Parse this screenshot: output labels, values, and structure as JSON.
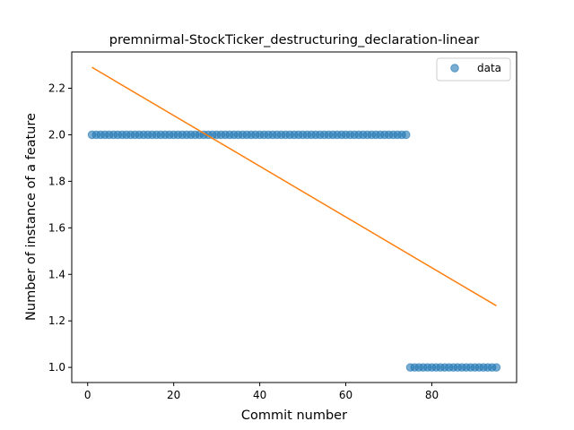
{
  "chart_data": {
    "type": "scatter",
    "title": "premnirmal-StockTicker_destructuring_declaration-linear",
    "xlabel": "Commit number",
    "ylabel": "Number of instance of a feature",
    "xlim": [
      -3.7,
      99.7
    ],
    "ylim": [
      0.935,
      2.356
    ],
    "xticks": [
      0,
      20,
      40,
      60,
      80
    ],
    "yticks": [
      1.0,
      1.2,
      1.4,
      1.6,
      1.8,
      2.0,
      2.2
    ],
    "xtick_labels": [
      "0",
      "20",
      "40",
      "60",
      "80"
    ],
    "ytick_labels": [
      "1.0",
      "1.2",
      "1.4",
      "1.6",
      "1.8",
      "2.0",
      "2.2"
    ],
    "legend": {
      "placement": "top-right",
      "entries": [
        "data"
      ]
    },
    "grid": false,
    "colors": {
      "data": "#1f77b4",
      "fit": "#ff7f0e"
    },
    "series": [
      {
        "name": "data",
        "kind": "scatter",
        "segments": [
          {
            "x_start": 1,
            "x_end": 74,
            "y": 2.0
          },
          {
            "x_start": 75,
            "x_end": 95,
            "y": 1.0
          }
        ]
      },
      {
        "kind": "line",
        "x": [
          1,
          95
        ],
        "y": [
          2.29,
          1.265
        ]
      }
    ]
  }
}
